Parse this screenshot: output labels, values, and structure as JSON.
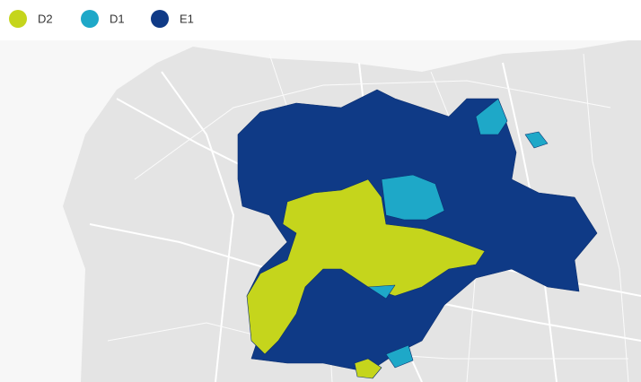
{
  "legend": {
    "items": [
      {
        "label": "D2",
        "color": "#c5d51c"
      },
      {
        "label": "D1",
        "color": "#1ea8c8"
      },
      {
        "label": "E1",
        "color": "#0f3a86"
      }
    ]
  }
}
